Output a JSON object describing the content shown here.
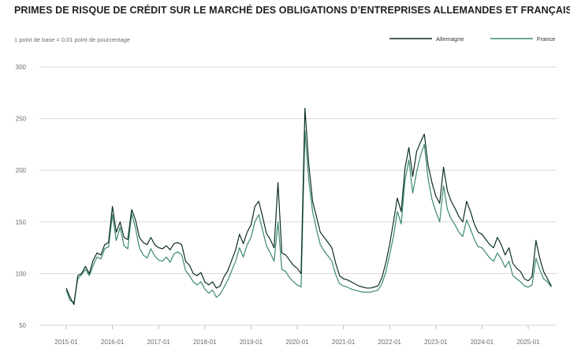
{
  "title": "PRIMES DE RISQUE DE CRÉDIT SUR LE MARCHÉ DES OBLIGATIONS D’ENTREPRISES ALLEMANDES ET FRANÇAISES",
  "subtitle": "1 point de base = 0,01 point de pourcentage",
  "colors": {
    "allemagne": "#0b2e22",
    "france": "#3a8a6c",
    "grid": "#d6d6d6"
  },
  "chart_data": {
    "type": "line",
    "title": "PRIMES DE RISQUE DE CRÉDIT SUR LE MARCHÉ DES OBLIGATIONS D’ENTREPRISES ALLEMANDES ET FRANÇAISES",
    "xlabel": "",
    "ylabel": "",
    "ylim": [
      50,
      300
    ],
    "yticks": [
      50,
      100,
      150,
      200,
      250,
      300
    ],
    "xticks": [
      "2015-01",
      "2016-01",
      "2017-01",
      "2018-01",
      "2019-01",
      "2020-01",
      "2021-01",
      "2022-01",
      "2023-01",
      "2024-01",
      "2025-01"
    ],
    "grid": true,
    "legend_position": "top-right",
    "series": [
      {
        "name": "Allemagne",
        "points": [
          [
            "2015-01",
            86
          ],
          [
            "2015-02",
            77
          ],
          [
            "2015-03",
            70
          ],
          [
            "2015-04",
            98
          ],
          [
            "2015-05",
            100
          ],
          [
            "2015-06",
            107
          ],
          [
            "2015-07",
            100
          ],
          [
            "2015-08",
            113
          ],
          [
            "2015-09",
            120
          ],
          [
            "2015-10",
            118
          ],
          [
            "2015-11",
            128
          ],
          [
            "2015-12",
            130
          ],
          [
            "2016-01",
            165
          ],
          [
            "2016-02",
            140
          ],
          [
            "2016-03",
            150
          ],
          [
            "2016-04",
            135
          ],
          [
            "2016-05",
            133
          ],
          [
            "2016-06",
            162
          ],
          [
            "2016-07",
            152
          ],
          [
            "2016-08",
            135
          ],
          [
            "2016-09",
            130
          ],
          [
            "2016-10",
            128
          ],
          [
            "2016-11",
            135
          ],
          [
            "2016-12",
            128
          ],
          [
            "2017-01",
            125
          ],
          [
            "2017-02",
            124
          ],
          [
            "2017-03",
            127
          ],
          [
            "2017-04",
            123
          ],
          [
            "2017-05",
            129
          ],
          [
            "2017-06",
            130
          ],
          [
            "2017-07",
            128
          ],
          [
            "2017-08",
            112
          ],
          [
            "2017-09",
            108
          ],
          [
            "2017-10",
            100
          ],
          [
            "2017-11",
            98
          ],
          [
            "2017-12",
            101
          ],
          [
            "2018-01",
            92
          ],
          [
            "2018-02",
            89
          ],
          [
            "2018-03",
            92
          ],
          [
            "2018-04",
            86
          ],
          [
            "2018-05",
            88
          ],
          [
            "2018-06",
            97
          ],
          [
            "2018-07",
            103
          ],
          [
            "2018-08",
            113
          ],
          [
            "2018-09",
            123
          ],
          [
            "2018-10",
            138
          ],
          [
            "2018-11",
            129
          ],
          [
            "2018-12",
            140
          ],
          [
            "2019-01",
            147
          ],
          [
            "2019-02",
            165
          ],
          [
            "2019-03",
            170
          ],
          [
            "2019-04",
            155
          ],
          [
            "2019-05",
            139
          ],
          [
            "2019-06",
            133
          ],
          [
            "2019-07",
            125
          ],
          [
            "2019-08",
            188
          ],
          [
            "2019-09",
            120
          ],
          [
            "2019-10",
            118
          ],
          [
            "2019-11",
            113
          ],
          [
            "2019-12",
            108
          ],
          [
            "2020-01",
            105
          ],
          [
            "2020-02",
            100
          ],
          [
            "2020-03",
            260
          ],
          [
            "2020-04",
            205
          ],
          [
            "2020-05",
            170
          ],
          [
            "2020-06",
            155
          ],
          [
            "2020-07",
            140
          ],
          [
            "2020-08",
            135
          ],
          [
            "2020-09",
            130
          ],
          [
            "2020-10",
            125
          ],
          [
            "2020-11",
            110
          ],
          [
            "2020-12",
            98
          ],
          [
            "2021-01",
            95
          ],
          [
            "2021-02",
            94
          ],
          [
            "2021-03",
            92
          ],
          [
            "2021-04",
            90
          ],
          [
            "2021-05",
            88
          ],
          [
            "2021-06",
            87
          ],
          [
            "2021-07",
            86
          ],
          [
            "2021-08",
            86
          ],
          [
            "2021-09",
            87
          ],
          [
            "2021-10",
            88
          ],
          [
            "2021-11",
            96
          ],
          [
            "2021-12",
            110
          ],
          [
            "2022-01",
            128
          ],
          [
            "2022-02",
            150
          ],
          [
            "2022-03",
            173
          ],
          [
            "2022-04",
            160
          ],
          [
            "2022-05",
            202
          ],
          [
            "2022-06",
            222
          ],
          [
            "2022-07",
            194
          ],
          [
            "2022-08",
            218
          ],
          [
            "2022-09",
            227
          ],
          [
            "2022-10",
            235
          ],
          [
            "2022-11",
            205
          ],
          [
            "2022-12",
            188
          ],
          [
            "2023-01",
            175
          ],
          [
            "2023-02",
            168
          ],
          [
            "2023-03",
            203
          ],
          [
            "2023-04",
            180
          ],
          [
            "2023-05",
            170
          ],
          [
            "2023-06",
            163
          ],
          [
            "2023-07",
            155
          ],
          [
            "2023-08",
            150
          ],
          [
            "2023-09",
            170
          ],
          [
            "2023-10",
            160
          ],
          [
            "2023-11",
            148
          ],
          [
            "2023-12",
            140
          ],
          [
            "2024-01",
            138
          ],
          [
            "2024-02",
            133
          ],
          [
            "2024-03",
            128
          ],
          [
            "2024-04",
            125
          ],
          [
            "2024-05",
            135
          ],
          [
            "2024-06",
            128
          ],
          [
            "2024-07",
            118
          ],
          [
            "2024-08",
            125
          ],
          [
            "2024-09",
            110
          ],
          [
            "2024-10",
            105
          ],
          [
            "2024-11",
            102
          ],
          [
            "2024-12",
            95
          ],
          [
            "2025-01",
            93
          ],
          [
            "2025-02",
            97
          ],
          [
            "2025-03",
            132
          ],
          [
            "2025-04",
            115
          ],
          [
            "2025-05",
            102
          ],
          [
            "2025-06",
            95
          ],
          [
            "2025-07",
            88
          ]
        ]
      },
      {
        "name": "France",
        "points": [
          [
            "2015-01",
            84
          ],
          [
            "2015-02",
            74
          ],
          [
            "2015-03",
            72
          ],
          [
            "2015-04",
            95
          ],
          [
            "2015-05",
            99
          ],
          [
            "2015-06",
            104
          ],
          [
            "2015-07",
            98
          ],
          [
            "2015-08",
            108
          ],
          [
            "2015-09",
            116
          ],
          [
            "2015-10",
            114
          ],
          [
            "2015-11",
            124
          ],
          [
            "2015-12",
            126
          ],
          [
            "2016-01",
            157
          ],
          [
            "2016-02",
            132
          ],
          [
            "2016-03",
            145
          ],
          [
            "2016-04",
            127
          ],
          [
            "2016-05",
            124
          ],
          [
            "2016-06",
            158
          ],
          [
            "2016-07",
            144
          ],
          [
            "2016-08",
            125
          ],
          [
            "2016-09",
            118
          ],
          [
            "2016-10",
            115
          ],
          [
            "2016-11",
            124
          ],
          [
            "2016-12",
            117
          ],
          [
            "2017-01",
            113
          ],
          [
            "2017-02",
            112
          ],
          [
            "2017-03",
            116
          ],
          [
            "2017-04",
            111
          ],
          [
            "2017-05",
            119
          ],
          [
            "2017-06",
            121
          ],
          [
            "2017-07",
            118
          ],
          [
            "2017-08",
            103
          ],
          [
            "2017-09",
            98
          ],
          [
            "2017-10",
            92
          ],
          [
            "2017-11",
            89
          ],
          [
            "2017-12",
            92
          ],
          [
            "2018-01",
            85
          ],
          [
            "2018-02",
            81
          ],
          [
            "2018-03",
            84
          ],
          [
            "2018-04",
            77
          ],
          [
            "2018-05",
            80
          ],
          [
            "2018-06",
            87
          ],
          [
            "2018-07",
            94
          ],
          [
            "2018-08",
            103
          ],
          [
            "2018-09",
            112
          ],
          [
            "2018-10",
            125
          ],
          [
            "2018-11",
            116
          ],
          [
            "2018-12",
            128
          ],
          [
            "2019-01",
            135
          ],
          [
            "2019-02",
            150
          ],
          [
            "2019-03",
            157
          ],
          [
            "2019-04",
            142
          ],
          [
            "2019-05",
            127
          ],
          [
            "2019-06",
            120
          ],
          [
            "2019-07",
            112
          ],
          [
            "2019-08",
            150
          ],
          [
            "2019-09",
            104
          ],
          [
            "2019-10",
            102
          ],
          [
            "2019-11",
            96
          ],
          [
            "2019-12",
            92
          ],
          [
            "2020-01",
            89
          ],
          [
            "2020-02",
            87
          ],
          [
            "2020-03",
            238
          ],
          [
            "2020-04",
            190
          ],
          [
            "2020-05",
            160
          ],
          [
            "2020-06",
            143
          ],
          [
            "2020-07",
            128
          ],
          [
            "2020-08",
            122
          ],
          [
            "2020-09",
            117
          ],
          [
            "2020-10",
            112
          ],
          [
            "2020-11",
            99
          ],
          [
            "2020-12",
            90
          ],
          [
            "2021-01",
            88
          ],
          [
            "2021-02",
            87
          ],
          [
            "2021-03",
            85
          ],
          [
            "2021-04",
            84
          ],
          [
            "2021-05",
            83
          ],
          [
            "2021-06",
            82
          ],
          [
            "2021-07",
            82
          ],
          [
            "2021-08",
            82
          ],
          [
            "2021-09",
            83
          ],
          [
            "2021-10",
            84
          ],
          [
            "2021-11",
            90
          ],
          [
            "2021-12",
            101
          ],
          [
            "2022-01",
            118
          ],
          [
            "2022-02",
            136
          ],
          [
            "2022-03",
            160
          ],
          [
            "2022-04",
            148
          ],
          [
            "2022-05",
            190
          ],
          [
            "2022-06",
            210
          ],
          [
            "2022-07",
            178
          ],
          [
            "2022-08",
            198
          ],
          [
            "2022-09",
            214
          ],
          [
            "2022-10",
            225
          ],
          [
            "2022-11",
            192
          ],
          [
            "2022-12",
            172
          ],
          [
            "2023-01",
            160
          ],
          [
            "2023-02",
            150
          ],
          [
            "2023-03",
            185
          ],
          [
            "2023-04",
            162
          ],
          [
            "2023-05",
            153
          ],
          [
            "2023-06",
            147
          ],
          [
            "2023-07",
            140
          ],
          [
            "2023-08",
            136
          ],
          [
            "2023-09",
            152
          ],
          [
            "2023-10",
            143
          ],
          [
            "2023-11",
            133
          ],
          [
            "2023-12",
            126
          ],
          [
            "2024-01",
            125
          ],
          [
            "2024-02",
            120
          ],
          [
            "2024-03",
            115
          ],
          [
            "2024-04",
            112
          ],
          [
            "2024-05",
            120
          ],
          [
            "2024-06",
            114
          ],
          [
            "2024-07",
            106
          ],
          [
            "2024-08",
            112
          ],
          [
            "2024-09",
            98
          ],
          [
            "2024-10",
            95
          ],
          [
            "2024-11",
            92
          ],
          [
            "2024-12",
            88
          ],
          [
            "2025-01",
            87
          ],
          [
            "2025-02",
            89
          ],
          [
            "2025-03",
            115
          ],
          [
            "2025-04",
            104
          ],
          [
            "2025-05",
            95
          ],
          [
            "2025-06",
            92
          ],
          [
            "2025-07",
            87
          ]
        ]
      }
    ]
  }
}
